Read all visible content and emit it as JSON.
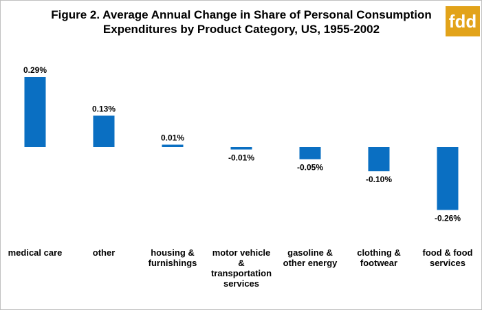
{
  "title_line1": "Figure 2. Average Annual Change in Share of Personal Consumption",
  "title_line2": "Expenditures by Product Category, US, 1955-2002",
  "logo_text": "fdd",
  "colors": {
    "bar": "#0a6fc2",
    "logo_bg": "#e2a31a",
    "logo_text": "#ffffff"
  },
  "chart_data": {
    "type": "bar",
    "title": "Figure 2. Average Annual Change in Share of Personal Consumption Expenditures by Product Category, US, 1955-2002",
    "categories": [
      [
        "medical care"
      ],
      [
        "other"
      ],
      [
        "housing &",
        "furnishings"
      ],
      [
        "motor vehicle",
        "&",
        "transportation",
        "services"
      ],
      [
        "gasoline &",
        "other energy"
      ],
      [
        "clothing &",
        "footwear"
      ],
      [
        "food & food",
        "services"
      ]
    ],
    "values": [
      0.29,
      0.13,
      0.01,
      -0.01,
      -0.05,
      -0.1,
      -0.26
    ],
    "data_labels": [
      "0.29%",
      "0.13%",
      "0.01%",
      "-0.01%",
      "-0.05%",
      "-0.10%",
      "-0.26%"
    ],
    "xlabel": "",
    "ylabel": "",
    "ylim": [
      -0.26,
      0.29
    ],
    "grid": false,
    "legend": "none"
  }
}
